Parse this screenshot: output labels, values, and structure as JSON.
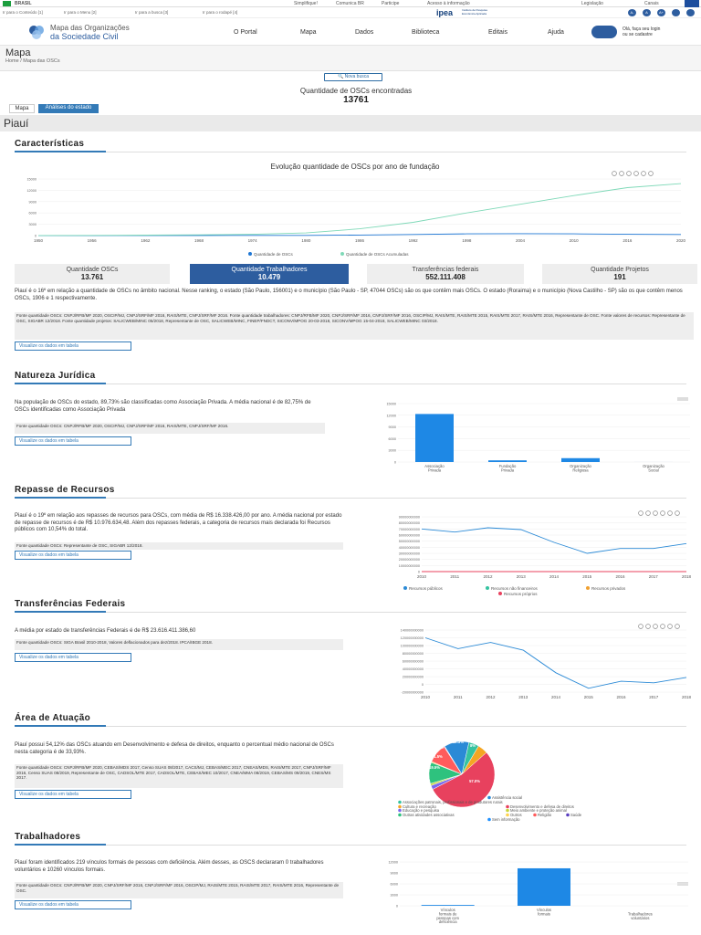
{
  "gov_bar": {
    "country": "BRASIL",
    "links": [
      "Simplifique!",
      "Comunica BR",
      "Participe",
      "Acesso à informação",
      "Legislação",
      "Canais"
    ]
  },
  "access_bar": {
    "links": [
      "Ir para o Conteúdo [1]",
      "Ir para o Menu [2]",
      "Ir para a busca [3]",
      "Ir para o rodapé [4]"
    ],
    "ipea": "ipea",
    "ipea_sub": "Instituto de Pesquisa Econômica Aplicada",
    "font_buttons": [
      "A-",
      "A",
      "A+"
    ]
  },
  "nav": {
    "logo_line1": "Mapa das Organizações",
    "logo_line2": "da Sociedade Civil",
    "items": [
      "O Portal",
      "Mapa",
      "Dados",
      "Biblioteca",
      "Editais",
      "Ajuda"
    ],
    "login_line1": "Olá, faça seu login",
    "login_line2": "ou se cadastre"
  },
  "page": {
    "title": "Mapa",
    "breadcrumb": "Home / Mapa das OSCs"
  },
  "search": {
    "new_search": "Nova busca",
    "count_label": "Quantidade de OSCs encontradas",
    "count": "13761",
    "tab_map": "Mapa",
    "tab_analysis": "Análises do estado"
  },
  "state": "Piauí",
  "characteristics": {
    "heading": "Características",
    "stats": [
      {
        "label": "Quantidade OSCs",
        "value": "13.761"
      },
      {
        "label": "Quantidade Trabalhadores",
        "value": "10.479"
      },
      {
        "label": "Transferências federais",
        "value": "552.111.408"
      },
      {
        "label": "Quantidade Projetos",
        "value": "191"
      }
    ],
    "text": "Piauí é o 16º em relação a quantidade de OSCs no âmbito nacional. Nesse ranking, o estado (São Paulo, 156001) e o município (São Paulo - SP, 47044 OSCs) são os que contêm mais OSCs. O estado (Roraima) e o município (Nova Castilho - SP) são os que contêm menos OSCs, 1906 e 1 respectivamente.",
    "source": "Fonte quantidade OSCs: CNPJ/RFB/MF 2020, OSCIP/MJ, CNPJ/SRF/MF 2016, RAIS/MTE, CNPJ/SRF/MF 2016. Fonte quantidade trabalhadores: CNPJ/RFB/MF 2020, CNPJ/SRF/MF 2016, CNPJ/SRF/MF 2016, OSCIP/MJ, RAIS/MTE, RAIS/MTE 2015, RAIS/MTE 2017, RAIS/MTE 2016, Representante de OSC. Fonte valores de recursos: Representante de OSC, SIGABR 12/2018. Fonte quantidade projetos: SALICWEB/MINC 05/2018, Representante de OSC, SALICWEB/MINC, FINEP/FNDCT, SICONV/MPOG 20-03-2018, SICONV/MPOG 15-04-2018, SALICWEB/MINC 03/2018.",
    "view_table": "Visualize os dados em tabela"
  },
  "chart_data": [
    {
      "type": "line",
      "title": "Evolução quantidade de OSCs por ano de fundação",
      "x": [
        1950,
        1956,
        1962,
        1968,
        1974,
        1980,
        1986,
        1992,
        1998,
        2004,
        2010,
        2016,
        2020
      ],
      "series": [
        {
          "name": "Quantidade de OSCs",
          "color": "#1f77d4",
          "values": [
            5,
            10,
            15,
            20,
            40,
            60,
            150,
            300,
            450,
            500,
            450,
            350,
            300
          ]
        },
        {
          "name": "Quantidade de OSCs Acumuladas",
          "color": "#7fd9b8",
          "values": [
            20,
            60,
            120,
            200,
            350,
            700,
            1800,
            3500,
            6000,
            8300,
            10600,
            12700,
            13761
          ]
        }
      ],
      "x_ticks": [
        "1950",
        "1956",
        "1962",
        "1968",
        "1974",
        "1980",
        "1986",
        "1992",
        "1998",
        "2004",
        "2010",
        "2016",
        "2020"
      ],
      "y_ticks": [
        "0",
        "3000",
        "6000",
        "9000",
        "12000",
        "15000"
      ],
      "ylim": [
        0,
        15000
      ]
    },
    {
      "type": "bar",
      "title": "Natureza Jurídica",
      "categories": [
        "Associação Privada",
        "Fundação Privada",
        "Organização Religiosa",
        "Organização Social"
      ],
      "values": [
        12330,
        430,
        990,
        5
      ],
      "y_ticks": [
        "0",
        "3000",
        "6000",
        "9000",
        "12000",
        "15000"
      ],
      "ylim": [
        0,
        15000
      ]
    },
    {
      "type": "line",
      "title": "Repasse de Recursos",
      "x": [
        "2010",
        "2011",
        "2012",
        "2013",
        "2014",
        "2015",
        "2016",
        "2017",
        "2018"
      ],
      "series": [
        {
          "name": "Recursos públicos",
          "color": "#2b8ad6",
          "values": [
            70000000,
            65000000,
            72000000,
            69000000,
            48000000,
            30000000,
            38000000,
            38000000,
            46000000
          ]
        },
        {
          "name": "Recursos não financeiros",
          "color": "#35c3a0",
          "values": [
            0,
            0,
            0,
            0,
            0,
            0,
            0,
            0,
            0
          ]
        },
        {
          "name": "Recursos privados",
          "color": "#f0a030",
          "values": [
            0,
            0,
            0,
            0,
            0,
            0,
            0,
            0,
            0
          ]
        },
        {
          "name": "Recursos próprios",
          "color": "#e8415e",
          "values": [
            0,
            0,
            0,
            0,
            0,
            0,
            0,
            0,
            0
          ]
        }
      ],
      "y_ticks": [
        "0",
        "10000000000",
        "20000000000",
        "30000000000",
        "40000000000",
        "50000000000",
        "60000000000",
        "70000000000",
        "80000000000",
        "90000000000"
      ],
      "ylim": [
        0,
        90000000000
      ]
    },
    {
      "type": "line",
      "title": "Transferências Federais",
      "x": [
        "2010",
        "2011",
        "2012",
        "2013",
        "2014",
        "2015",
        "2016",
        "2017",
        "2018"
      ],
      "series": [
        {
          "name": "Transferências federais",
          "color": "#2b8ad6",
          "values": [
            120000000,
            92000000,
            108000000,
            88000000,
            30000000,
            -10000000,
            8000000,
            4000000,
            18000000
          ]
        }
      ],
      "y_ticks": [
        "-20000000000",
        "0",
        "20000000000",
        "40000000000",
        "60000000000",
        "80000000000",
        "100000000000",
        "120000000000",
        "140000000000"
      ],
      "ylim": [
        -20000000000,
        140000000000
      ]
    },
    {
      "type": "pie",
      "title": "Área de Atuação",
      "slices": [
        {
          "label": "Assistência social",
          "value": 12.3,
          "color": "#2b8ad6"
        },
        {
          "label": "Associações patronais, profissionais e de produtores rurais",
          "value": 5.0,
          "color": "#35c3a0"
        },
        {
          "label": "Cultura e recreação",
          "value": 5.0,
          "color": "#f5a623"
        },
        {
          "label": "Desenvolvimento e defesa de direitos",
          "value": 54.1,
          "color": "#e8415e"
        },
        {
          "label": "Educação e pesquisa",
          "value": 2.0,
          "color": "#7b68ee"
        },
        {
          "label": "Meio ambiente e proteção animal",
          "value": 1.0,
          "color": "#c8d63a"
        },
        {
          "label": "Outras atividades associativas",
          "value": 10.5,
          "color": "#2ec27e"
        },
        {
          "label": "Outros",
          "value": 0.5,
          "color": "#ffd24d"
        },
        {
          "label": "Religião",
          "value": 9.5,
          "color": "#ff5c5c"
        },
        {
          "label": "Saúde",
          "value": 0.3,
          "color": "#5a3fc0"
        },
        {
          "label": "Sem informação",
          "value": 0.1,
          "color": "#1e90ff"
        }
      ],
      "labels": [
        "17.5%",
        "19.5%",
        "1.5%",
        "12.3%",
        "8%",
        "57.0%"
      ]
    },
    {
      "type": "bar",
      "title": "Trabalhadores",
      "categories": [
        "Vínculos formais de pessoas com deficiência",
        "Vínculos formais",
        "Trabalhadores voluntários"
      ],
      "values": [
        219,
        10260,
        0
      ],
      "y_ticks": [
        "0",
        "3000",
        "6000",
        "9000",
        "12000"
      ],
      "ylim": [
        0,
        12000
      ]
    }
  ],
  "legends": {
    "chart1": [
      "Quantidade de OSCs",
      "Quantidade de OSCs Acumuladas"
    ],
    "repasse": [
      "Recursos públicos",
      "Recursos não financeiros",
      "Recursos privados",
      "Recursos próprios"
    ],
    "area": [
      "Assistência social",
      "Associações patronais, profissionais e de produtores rurais",
      "Cultura e recreação",
      "Desenvolvimento e defesa de direitos",
      "Educação e pesquisa",
      "Meio ambiente e proteção animal",
      "Outras atividades associativas",
      "Outros",
      "Religião",
      "Saúde",
      "Sem informação"
    ]
  },
  "natureza": {
    "heading": "Natureza Jurídica",
    "text": "Na população de OSCs do estado, 89,73% são classificadas como Associação Privada. A média nacional é de 82,75% de OSCs identificadas como Associação Privada",
    "source": "Fonte quantidade OSCs: CNPJ/RFB/MF 2020, OSCIP/MJ, CNPJ/SRF/MF 2016, RAIS/MTE, CNPJ/SRF/MF 2016.",
    "view_table": "Visualize os dados em tabela"
  },
  "repasse": {
    "heading": "Repasse de Recursos",
    "text": "Piauí é o 19º em relação aos repasses de recursos para OSCs, com média de R$ 16.338.426,00 por ano. A média nacional por estado de repasse de recursos é de R$ 10.976.634,48. Além dos repasses federais, a categoria de recursos mais declarada foi Recursos públicos com 10,54% do total.",
    "source": "Fonte quantidade OSCs: Representante de OSC, SIGABR 12/2018.",
    "view_table": "Visualize os dados em tabela"
  },
  "transferencias": {
    "heading": "Transferências Federais",
    "text": "A média por estado de transferências Federais é de R$ 23.616.411.386,60",
    "source": "Fonte quantidade OSCs: SIGA Brasil 2010-2018, Valores deflacionados para dez/2018. IPCA/IBGE 2018.",
    "view_table": "Visualize os dados em tabela"
  },
  "area": {
    "heading": "Área de Atuação",
    "text": "Piauí possui 54,12% das OSCs atuando em Desenvolvimento e defesa de direitos, enquanto o percentual médio nacional de OSCs nesta categoria é de 33,93%.",
    "source": "Fonte quantidade OSCs: CNPJ/RFB/MF 2020, CEBAS/MDS 2017, Censo SUAS 08/2017, CACS/MJ, CEBAS/MEC 2017, CNEAS/MDS, RAIS/MTE 2017, CNPJ/SRF/MF 2016, Censo SUAS 08/2019, Representante de OSC, CADSOL/MTE 2017, CADSOL/MTE, CEBAS/MEC 10/2017, CNEA/MMA 08/2019, CEBAS/MS 09/2019, CNES/MS 2017.",
    "view_table": "Visualize os dados em tabela"
  },
  "trabalhadores": {
    "heading": "Trabalhadores",
    "text": "Piauí foram identificados 219 vínculos formais de pessoas com deficiência. Além desses, as OSCS declararam 0 trabalhadores voluntários e 10260 vínculos formais.",
    "source": "Fonte quantidade OSCs: CNPJ/RFB/MF 2020, CNPJ/SRF/MF 2016, CNPJ/SRF/MF 2016, OSCIP/MJ, RAIS/MTE 2015, RAIS/MTE 2017, RAIS/MTE 2016, Representante de OSC.",
    "view_table": "Visualize os dados em tabela"
  },
  "colors": {
    "primary": "#337ab7",
    "dark_blue": "#2d5d9f",
    "teal": "#7fd9b8"
  }
}
